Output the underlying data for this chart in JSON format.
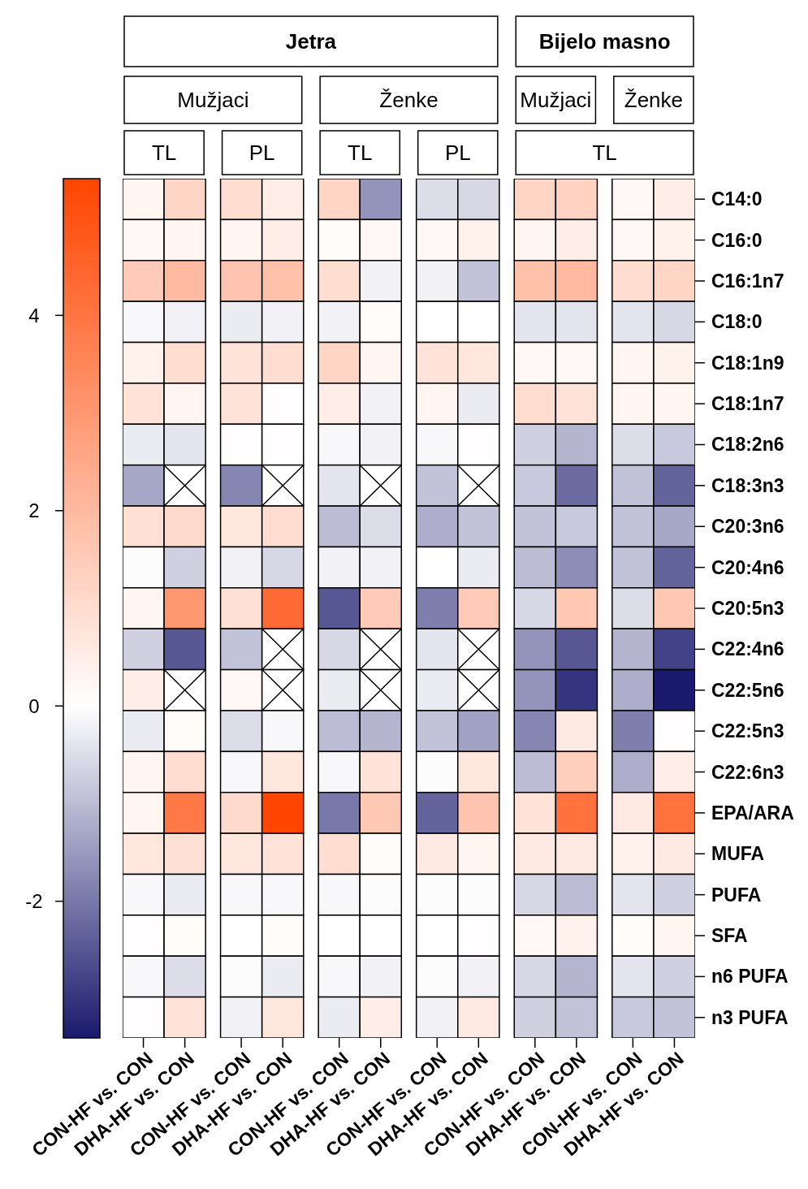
{
  "chart_data": {
    "type": "heatmap",
    "annotations": [
      "Jetra",
      "Bijelo masno",
      "Mužjaci",
      "Ženke",
      "Mužjaci",
      "Ženke",
      "TL",
      "PL",
      "TL",
      "PL",
      "TL"
    ],
    "categories": [
      "CON-HF vs. CON",
      "DHA-HF vs. CON",
      "CON-HF vs. CON",
      "DHA-HF vs. CON",
      "CON-HF vs. CON",
      "DHA-HF vs. CON",
      "CON-HF vs. CON",
      "DHA-HF vs. CON",
      "CON-HF vs. CON",
      "DHA-HF vs. CON",
      "CON-HF vs. CON",
      "DHA-HF vs. CON"
    ],
    "y_categories": [
      "C14:0",
      "C16:0",
      "C16:1n7",
      "C18:0",
      "C18:1n9",
      "C18:1n7",
      "C18:2n6",
      "C18:3n3",
      "C20:3n6",
      "C20:4n6",
      "C20:5n3",
      "C22:4n6",
      "C22:5n6",
      "C22:5n3",
      "C22:6n3",
      "EPA/ARA",
      "MUFA",
      "PUFA",
      "SFA",
      "n6 PUFA",
      "n3 PUFA"
    ],
    "cells": [
      [
        0.3,
        1.2,
        1.0,
        0.5,
        1.2,
        -1.6,
        -0.5,
        -0.6,
        1.2,
        1.3,
        0.2,
        0.5
      ],
      [
        0.2,
        0.3,
        0.3,
        0.5,
        0.1,
        0.2,
        0.2,
        0.4,
        0.3,
        0.5,
        0.2,
        0.4
      ],
      [
        1.5,
        2.0,
        1.7,
        1.8,
        1.0,
        -0.2,
        -0.2,
        -0.9,
        1.8,
        2.0,
        1.0,
        1.2
      ],
      [
        -0.1,
        -0.2,
        -0.3,
        -0.2,
        -0.2,
        0.1,
        0,
        0,
        -0.4,
        -0.4,
        -0.4,
        -0.6
      ],
      [
        0.4,
        1.0,
        0.8,
        1.0,
        1.2,
        0.3,
        0.8,
        0.7,
        0.2,
        0.2,
        0.3,
        0.4
      ],
      [
        0.8,
        0.3,
        0.8,
        0.05,
        0.5,
        -0.2,
        0.3,
        -0.3,
        1.0,
        0.8,
        0.3,
        0.3
      ],
      [
        -0.3,
        -0.4,
        0.05,
        0.05,
        -0.1,
        -0.2,
        -0.1,
        0.05,
        -0.7,
        -1.1,
        -0.5,
        -0.8
      ],
      [
        -1.3,
        null,
        -1.8,
        null,
        -0.4,
        null,
        -0.9,
        null,
        -0.8,
        -2.2,
        -0.9,
        -2.3
      ],
      [
        0.9,
        1.1,
        0.7,
        1.0,
        -1.0,
        -0.5,
        -1.2,
        -0.9,
        -0.9,
        -0.8,
        -0.9,
        -1.3
      ],
      [
        -0.05,
        -0.7,
        -0.2,
        -0.6,
        -0.2,
        -0.2,
        0,
        -0.3,
        -1.0,
        -1.7,
        -0.9,
        -2.3
      ],
      [
        0.3,
        3.0,
        0.9,
        4.3,
        -2.5,
        1.5,
        -1.9,
        1.5,
        -0.6,
        1.6,
        -0.5,
        1.6
      ],
      [
        -0.7,
        -2.5,
        -0.9,
        null,
        -0.6,
        null,
        -0.4,
        null,
        -1.6,
        -2.5,
        -1.1,
        -2.8
      ],
      [
        0.5,
        null,
        0.2,
        null,
        -0.3,
        null,
        -0.3,
        null,
        -1.6,
        -3.0,
        -1.2,
        -3.4
      ],
      [
        -0.3,
        0.1,
        -0.5,
        -0.1,
        -1.0,
        -1.1,
        -0.9,
        -1.4,
        -1.8,
        0.6,
        -1.9,
        0.05
      ],
      [
        0.3,
        1.0,
        -0.1,
        0.7,
        -0.1,
        0.8,
        -0.05,
        0.7,
        -1.0,
        1.4,
        -1.2,
        0.5
      ],
      [
        0.3,
        3.9,
        1.1,
        5.4,
        -2.0,
        1.6,
        -2.3,
        1.7,
        0.8,
        4.1,
        0.6,
        4.1
      ],
      [
        0.7,
        0.9,
        0.7,
        0.8,
        1.0,
        0.1,
        0.6,
        0.3,
        0.6,
        0.6,
        0.4,
        0.6
      ],
      [
        -0.1,
        -0.3,
        -0.1,
        -0.1,
        -0.1,
        -0.05,
        -0.05,
        -0.05,
        -0.6,
        -1.0,
        -0.4,
        -0.7
      ],
      [
        0.05,
        0.1,
        0,
        0.1,
        0,
        0,
        0,
        0.05,
        0.2,
        0.4,
        0.1,
        0.3
      ],
      [
        -0.1,
        -0.5,
        -0.05,
        -0.3,
        -0.1,
        -0.2,
        -0.05,
        -0.2,
        -0.6,
        -1.1,
        -0.4,
        -0.7
      ],
      [
        0.05,
        0.8,
        -0.2,
        0.7,
        -0.3,
        0.5,
        -0.2,
        0.6,
        -0.7,
        -0.9,
        -0.8,
        -0.9
      ]
    ],
    "clim": [
      -3.4,
      5.4
    ],
    "cticks": [
      -2,
      0,
      2,
      4
    ]
  }
}
